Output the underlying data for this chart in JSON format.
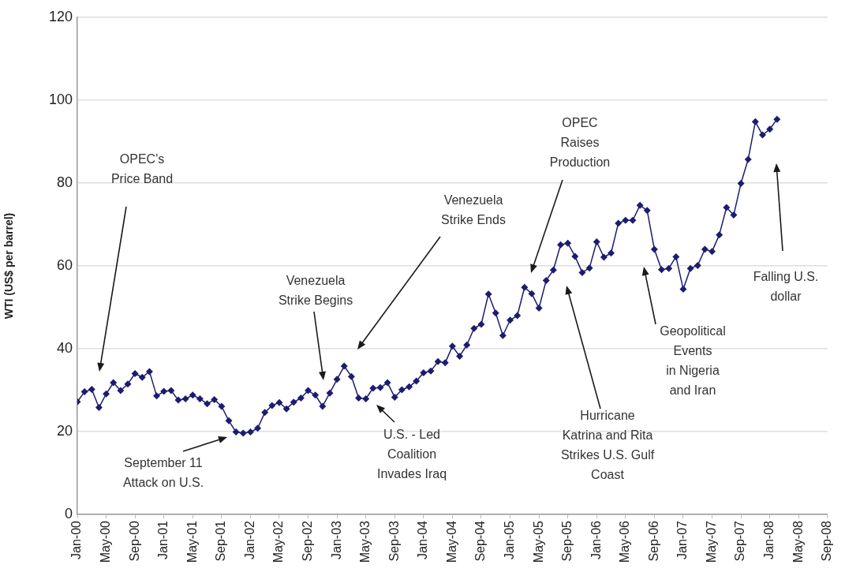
{
  "chart_data": {
    "type": "line",
    "ylabel": "WTI (US$ per barrel)",
    "marker": "diamond",
    "grid": "y",
    "legend": false,
    "xlim": [
      "2000-01",
      "2008-09"
    ],
    "ylim": [
      0,
      120
    ],
    "yticks": [
      0,
      20,
      40,
      60,
      80,
      100,
      120
    ],
    "xticks": [
      {
        "value": "2000-01",
        "label": "Jan-00"
      },
      {
        "value": "2000-05",
        "label": "May-00"
      },
      {
        "value": "2000-09",
        "label": "Sep-00"
      },
      {
        "value": "2001-01",
        "label": "Jan-01"
      },
      {
        "value": "2001-05",
        "label": "May-01"
      },
      {
        "value": "2001-09",
        "label": "Sep-01"
      },
      {
        "value": "2002-01",
        "label": "Jan-02"
      },
      {
        "value": "2002-05",
        "label": "May-02"
      },
      {
        "value": "2002-09",
        "label": "Sep-02"
      },
      {
        "value": "2003-01",
        "label": "Jan-03"
      },
      {
        "value": "2003-05",
        "label": "May-03"
      },
      {
        "value": "2003-09",
        "label": "Sep-03"
      },
      {
        "value": "2004-01",
        "label": "Jan-04"
      },
      {
        "value": "2004-05",
        "label": "May-04"
      },
      {
        "value": "2004-09",
        "label": "Sep-04"
      },
      {
        "value": "2005-01",
        "label": "Jan-05"
      },
      {
        "value": "2005-05",
        "label": "May-05"
      },
      {
        "value": "2005-09",
        "label": "Sep-05"
      },
      {
        "value": "2006-01",
        "label": "Jan-06"
      },
      {
        "value": "2006-05",
        "label": "May-06"
      },
      {
        "value": "2006-09",
        "label": "Sep-06"
      },
      {
        "value": "2007-01",
        "label": "Jan-07"
      },
      {
        "value": "2007-05",
        "label": "May-07"
      },
      {
        "value": "2007-09",
        "label": "Sep-07"
      },
      {
        "value": "2008-01",
        "label": "Jan-08"
      },
      {
        "value": "2008-05",
        "label": "May-08"
      },
      {
        "value": "2008-09",
        "label": "Sep-08"
      }
    ],
    "x": [
      "2000-01",
      "2000-02",
      "2000-03",
      "2000-04",
      "2000-05",
      "2000-06",
      "2000-07",
      "2000-08",
      "2000-09",
      "2000-10",
      "2000-11",
      "2000-12",
      "2001-01",
      "2001-02",
      "2001-03",
      "2001-04",
      "2001-05",
      "2001-06",
      "2001-07",
      "2001-08",
      "2001-09",
      "2001-10",
      "2001-11",
      "2001-12",
      "2002-01",
      "2002-02",
      "2002-03",
      "2002-04",
      "2002-05",
      "2002-06",
      "2002-07",
      "2002-08",
      "2002-09",
      "2002-10",
      "2002-11",
      "2002-12",
      "2003-01",
      "2003-02",
      "2003-03",
      "2003-04",
      "2003-05",
      "2003-06",
      "2003-07",
      "2003-08",
      "2003-09",
      "2003-10",
      "2003-11",
      "2003-12",
      "2004-01",
      "2004-02",
      "2004-03",
      "2004-04",
      "2004-05",
      "2004-06",
      "2004-07",
      "2004-08",
      "2004-09",
      "2004-10",
      "2004-11",
      "2004-12",
      "2005-01",
      "2005-02",
      "2005-03",
      "2005-04",
      "2005-05",
      "2005-06",
      "2005-07",
      "2005-08",
      "2005-09",
      "2005-10",
      "2005-11",
      "2005-12",
      "2006-01",
      "2006-02",
      "2006-03",
      "2006-04",
      "2006-05",
      "2006-06",
      "2006-07",
      "2006-08",
      "2006-09",
      "2006-10",
      "2006-11",
      "2006-12",
      "2007-01",
      "2007-02",
      "2007-03",
      "2007-04",
      "2007-05",
      "2007-06",
      "2007-07",
      "2007-08",
      "2007-09",
      "2007-10",
      "2007-11",
      "2007-12",
      "2008-01",
      "2008-02"
    ],
    "series": [
      {
        "color": "#1c1c70",
        "values": [
          27.2,
          29.6,
          30.2,
          25.8,
          29.1,
          31.8,
          29.9,
          31.5,
          34.0,
          33.1,
          34.5,
          28.6,
          29.7,
          29.9,
          27.6,
          27.9,
          28.8,
          27.9,
          26.7,
          27.7,
          26.1,
          22.6,
          19.9,
          19.6,
          19.9,
          20.8,
          24.6,
          26.3,
          27.0,
          25.5,
          27.1,
          28.1,
          29.9,
          28.8,
          26.1,
          29.3,
          32.6,
          35.8,
          33.3,
          28.1,
          27.9,
          30.5,
          30.6,
          31.8,
          28.3,
          30.1,
          30.8,
          32.2,
          34.2,
          34.6,
          36.9,
          36.6,
          40.6,
          38.2,
          40.9,
          44.9,
          45.9,
          53.2,
          48.6,
          43.2,
          46.9,
          48.0,
          54.8,
          53.3,
          49.8,
          56.5,
          59.0,
          65.1,
          65.5,
          62.3,
          58.4,
          59.5,
          65.8,
          62.1,
          63.1,
          70.3,
          71.0,
          71.0,
          74.6,
          73.4,
          64.0,
          59.1,
          59.4,
          62.2,
          54.4,
          59.4,
          60.1,
          64.0,
          63.5,
          67.5,
          74.1,
          72.3,
          79.9,
          85.7,
          94.8,
          91.6,
          93.0,
          95.4
        ]
      }
    ],
    "annotations": [
      "OPEC's\nPrice Band",
      "September 11\nAttack on U.S.",
      "Venezuela\nStrike Begins",
      "Venezuela\nStrike Ends",
      "U.S. - Led\nCoalition\nInvades Iraq",
      "OPEC\nRaises\nProduction",
      "Hurricane\nKatrina and Rita\nStrikes U.S. Gulf\nCoast",
      "Geopolitical\nEvents\nin Nigeria\nand Iran",
      "Falling U.S.\ndollar"
    ]
  }
}
